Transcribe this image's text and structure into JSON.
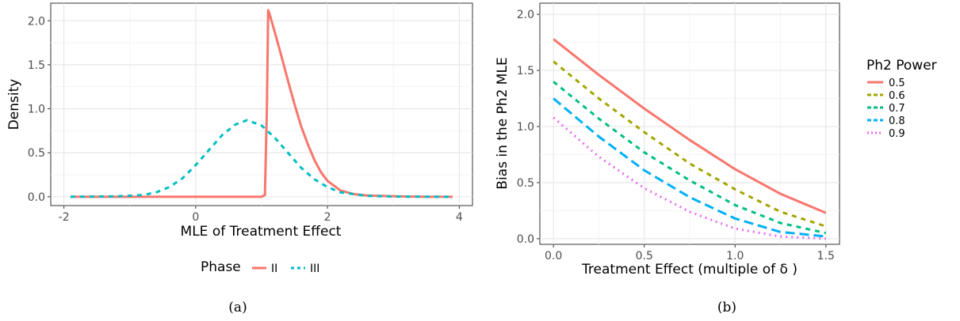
{
  "chart_data": [
    {
      "type": "line",
      "panel_caption": "(a)",
      "xlabel": "MLE of Treatment Effect",
      "ylabel": "Density",
      "xlim": [
        -2.2,
        4.2
      ],
      "ylim": [
        -0.1,
        2.2
      ],
      "xticks": [
        -2,
        0,
        2,
        4
      ],
      "xtick_labels": [
        "-2",
        "0",
        "2",
        "4"
      ],
      "yticks": [
        0,
        0.5,
        1,
        1.5,
        2
      ],
      "ytick_labels": [
        "0.0",
        "0.5",
        "1.0",
        "1.5",
        "2.0"
      ],
      "grid": true,
      "legend": {
        "title": "Phase",
        "placement": "bottom",
        "entries": [
          "II",
          "III"
        ]
      },
      "series": [
        {
          "name": "II",
          "color": "#F8766D",
          "dash": "solid",
          "x": [
            -1.9,
            1.0,
            1.05,
            1.08,
            1.1,
            1.12,
            1.2,
            1.3,
            1.4,
            1.5,
            1.6,
            1.7,
            1.8,
            1.9,
            2.0,
            2.2,
            2.4,
            2.6,
            3.0,
            3.5,
            3.9
          ],
          "y": [
            0,
            0,
            0.02,
            1.0,
            2.12,
            2.08,
            1.87,
            1.6,
            1.32,
            1.05,
            0.8,
            0.6,
            0.42,
            0.28,
            0.18,
            0.07,
            0.03,
            0.015,
            0.005,
            0,
            0
          ]
        },
        {
          "name": "III",
          "color": "#00BFC4",
          "dash": "dashed",
          "x": [
            -1.9,
            -1.2,
            -0.8,
            -0.6,
            -0.4,
            -0.2,
            0,
            0.2,
            0.4,
            0.6,
            0.78,
            1.0,
            1.2,
            1.4,
            1.6,
            1.8,
            2.0,
            2.2,
            2.6,
            3.0,
            3.9
          ],
          "y": [
            0,
            0.005,
            0.02,
            0.05,
            0.11,
            0.21,
            0.36,
            0.53,
            0.7,
            0.82,
            0.87,
            0.81,
            0.67,
            0.5,
            0.33,
            0.2,
            0.11,
            0.05,
            0.01,
            0.002,
            0
          ]
        }
      ]
    },
    {
      "type": "line",
      "panel_caption": "(b)",
      "xlabel": "Treatment Effect (multiple of  δ )",
      "ylabel": "Bias in the Ph2 MLE",
      "xlim": [
        -0.075,
        1.575
      ],
      "ylim": [
        -0.05,
        2.1
      ],
      "xticks": [
        0,
        0.5,
        1,
        1.5
      ],
      "xtick_labels": [
        "0.0",
        "0.5",
        "1.0",
        "1.5"
      ],
      "yticks": [
        0,
        0.5,
        1,
        1.5,
        2
      ],
      "ytick_labels": [
        "0.0",
        "0.5",
        "1.0",
        "1.5",
        "2.0"
      ],
      "grid": true,
      "legend": {
        "title": "Ph2 Power",
        "placement": "right",
        "entries": [
          "0.5",
          "0.6",
          "0.7",
          "0.8",
          "0.9"
        ]
      },
      "series": [
        {
          "name": "0.5",
          "color": "#F8766D",
          "dash": "solid",
          "x": [
            0,
            0.25,
            0.5,
            0.75,
            1.0,
            1.25,
            1.5
          ],
          "y": [
            1.78,
            1.46,
            1.16,
            0.88,
            0.62,
            0.4,
            0.23
          ]
        },
        {
          "name": "0.6",
          "color": "#A3A500",
          "dash": "dashed",
          "x": [
            0,
            0.25,
            0.5,
            0.75,
            1.0,
            1.25,
            1.5
          ],
          "y": [
            1.58,
            1.25,
            0.95,
            0.67,
            0.44,
            0.24,
            0.11
          ]
        },
        {
          "name": "0.7",
          "color": "#00BF7D",
          "dash": "dashed",
          "x": [
            0,
            0.25,
            0.5,
            0.75,
            1.0,
            1.25,
            1.5
          ],
          "y": [
            1.4,
            1.07,
            0.77,
            0.52,
            0.3,
            0.14,
            0.05
          ]
        },
        {
          "name": "0.8",
          "color": "#00B0F6",
          "dash": "longdash",
          "x": [
            0,
            0.25,
            0.5,
            0.75,
            1.0,
            1.25,
            1.5
          ],
          "y": [
            1.25,
            0.91,
            0.61,
            0.37,
            0.18,
            0.06,
            0.02
          ]
        },
        {
          "name": "0.9",
          "color": "#E76BF3",
          "dash": "dotted",
          "x": [
            0,
            0.25,
            0.5,
            0.75,
            1.0,
            1.25,
            1.5
          ],
          "y": [
            1.08,
            0.73,
            0.45,
            0.24,
            0.09,
            0.02,
            0.0
          ]
        }
      ]
    }
  ]
}
